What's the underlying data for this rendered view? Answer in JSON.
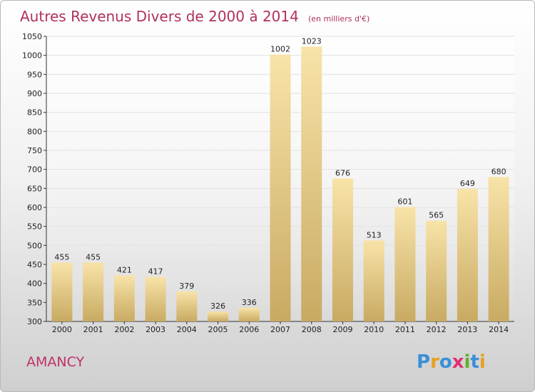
{
  "title": "Autres Revenus Divers de 2000 à 2014",
  "title_unit": "(en milliers d'€)",
  "city": "AMANCY",
  "logo_text": "Proxiti",
  "colors": {
    "title": "#b03060",
    "bar_light": "#f8e3a8",
    "bar_dark": "#c8aa62",
    "logo": [
      "#3a8fd8",
      "#e8a020",
      "#3a8fd8",
      "#e03070",
      "#60b030",
      "#3a8fd8",
      "#e8a020"
    ]
  },
  "chart_data": {
    "type": "bar",
    "title": "Autres Revenus Divers de 2000 à 2014",
    "subtitle": "(en milliers d'€)",
    "categories": [
      "2000",
      "2001",
      "2002",
      "2003",
      "2004",
      "2005",
      "2006",
      "2007",
      "2008",
      "2009",
      "2010",
      "2011",
      "2012",
      "2013",
      "2014"
    ],
    "values": [
      455,
      455,
      421,
      417,
      379,
      326,
      336,
      1002,
      1023,
      676,
      513,
      601,
      565,
      649,
      680
    ],
    "ylim": [
      300,
      1050
    ],
    "yticks": [
      300,
      350,
      400,
      450,
      500,
      550,
      600,
      650,
      700,
      750,
      800,
      850,
      900,
      950,
      1000,
      1050
    ],
    "grid": true,
    "legend": "none"
  }
}
